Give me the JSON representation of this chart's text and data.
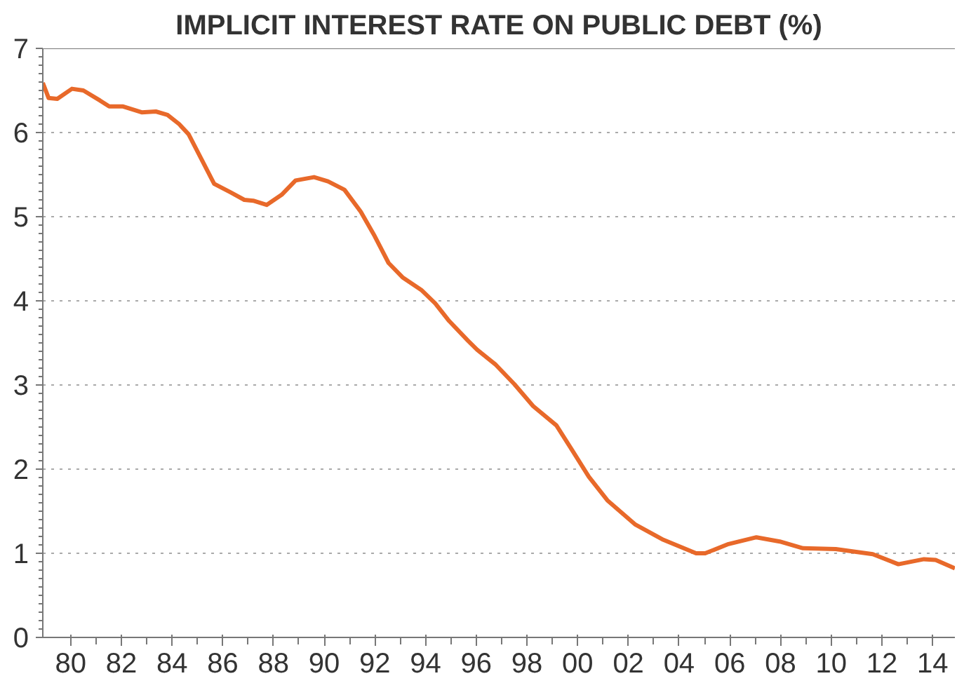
{
  "chart_data": {
    "type": "line",
    "title": "IMPLICIT INTEREST RATE ON PUBLIC DEBT (%)",
    "series": [
      {
        "color": "#e8692a",
        "x": [
          1978.9,
          1979.13,
          1979.47,
          1980.05,
          1980.5,
          1981.16,
          1981.52,
          1982.07,
          1982.8,
          1983.36,
          1983.82,
          1984.28,
          1984.65,
          1985.2,
          1985.66,
          1986.3,
          1986.85,
          1987.2,
          1987.73,
          1988.32,
          1988.87,
          1989.6,
          1990.15,
          1990.8,
          1991.44,
          1991.99,
          1992.54,
          1993.09,
          1993.83,
          1994.38,
          1994.93,
          1995.66,
          1996.03,
          1996.77,
          1997.5,
          1998.24,
          1999.16,
          1999.71,
          2000.44,
          2001.17,
          2002.28,
          2003.38,
          2004.67,
          2005.03,
          2005.95,
          2007.05,
          2007.97,
          2008.89,
          2010.18,
          2011.64,
          2012.65,
          2013.66,
          2014.12,
          2014.88
        ],
        "values": [
          6.59,
          6.41,
          6.4,
          6.52,
          6.5,
          6.38,
          6.31,
          6.31,
          6.24,
          6.25,
          6.21,
          6.1,
          5.98,
          5.66,
          5.39,
          5.29,
          5.2,
          5.19,
          5.14,
          5.26,
          5.43,
          5.47,
          5.42,
          5.32,
          5.06,
          4.77,
          4.45,
          4.28,
          4.13,
          3.97,
          3.76,
          3.53,
          3.42,
          3.24,
          3.01,
          2.75,
          2.52,
          2.26,
          1.91,
          1.63,
          1.34,
          1.16,
          1.0,
          1.0,
          1.11,
          1.19,
          1.14,
          1.06,
          1.05,
          0.99,
          0.87,
          0.93,
          0.92,
          0.82
        ]
      }
    ],
    "xlim": [
      1978.9,
      2014.88
    ],
    "xticks": [
      {
        "value": 1980,
        "label": "80"
      },
      {
        "value": 1981,
        "label": null
      },
      {
        "value": 1982,
        "label": "82"
      },
      {
        "value": 1983,
        "label": null
      },
      {
        "value": 1984,
        "label": "84"
      },
      {
        "value": 1985,
        "label": null
      },
      {
        "value": 1986,
        "label": "86"
      },
      {
        "value": 1987,
        "label": null
      },
      {
        "value": 1988,
        "label": "88"
      },
      {
        "value": 1989,
        "label": null
      },
      {
        "value": 1990,
        "label": "90"
      },
      {
        "value": 1991,
        "label": null
      },
      {
        "value": 1992,
        "label": "92"
      },
      {
        "value": 1993,
        "label": null
      },
      {
        "value": 1994,
        "label": "94"
      },
      {
        "value": 1995,
        "label": null
      },
      {
        "value": 1996,
        "label": "96"
      },
      {
        "value": 1997,
        "label": null
      },
      {
        "value": 1998,
        "label": "98"
      },
      {
        "value": 1999,
        "label": null
      },
      {
        "value": 2000,
        "label": "00"
      },
      {
        "value": 2001,
        "label": null
      },
      {
        "value": 2002,
        "label": "02"
      },
      {
        "value": 2003,
        "label": null
      },
      {
        "value": 2004,
        "label": "04"
      },
      {
        "value": 2005,
        "label": null
      },
      {
        "value": 2006,
        "label": "06"
      },
      {
        "value": 2007,
        "label": null
      },
      {
        "value": 2008,
        "label": "08"
      },
      {
        "value": 2009,
        "label": null
      },
      {
        "value": 2010,
        "label": "10"
      },
      {
        "value": 2011,
        "label": null
      },
      {
        "value": 2012,
        "label": "12"
      },
      {
        "value": 2013,
        "label": null
      },
      {
        "value": 2014,
        "label": "14"
      }
    ],
    "ylim": [
      0,
      7
    ],
    "yticks": [
      0,
      1,
      2,
      3,
      4,
      5,
      6,
      7
    ],
    "grid": "y",
    "line_style": "solid"
  }
}
